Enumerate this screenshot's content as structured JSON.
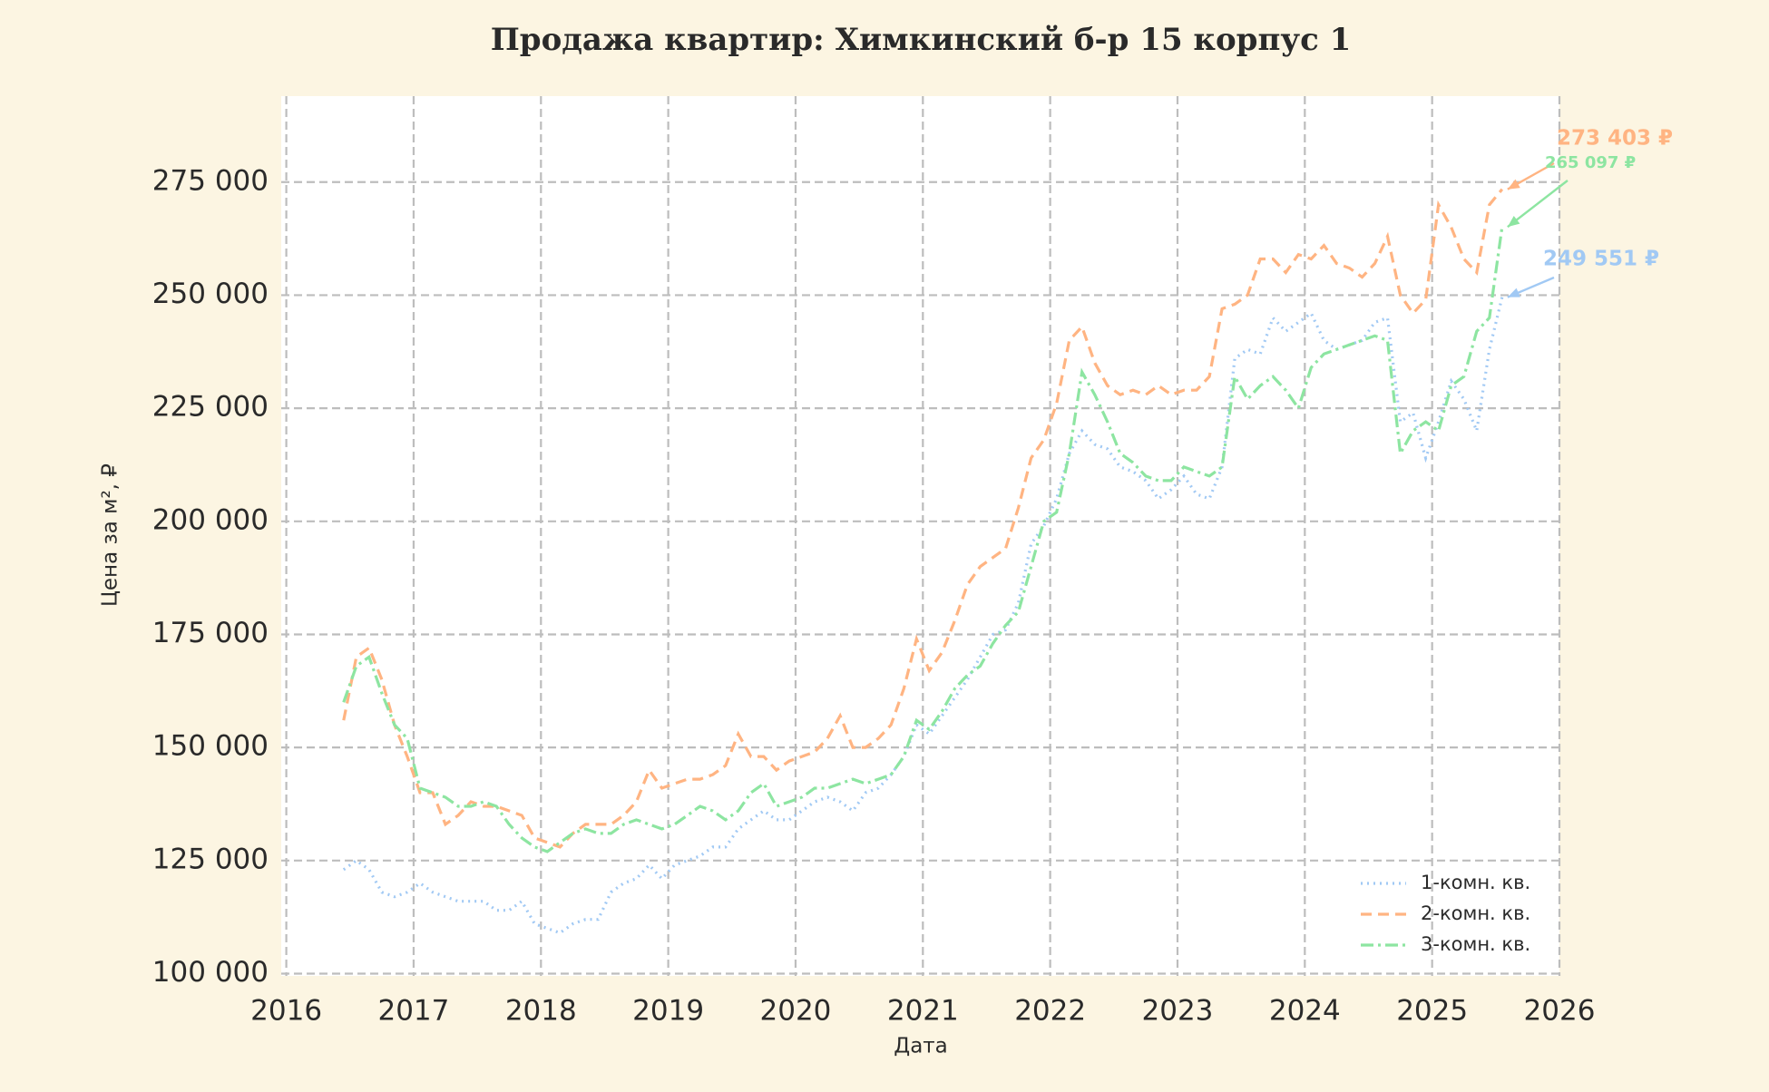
{
  "chart_data": {
    "type": "line",
    "title": "Продажа квартир: Химкинский б-р 15 корпус 1",
    "xlabel": "Дата",
    "ylabel": "Цена за м², ₽",
    "x": [
      2016.45,
      2016.55,
      2016.65,
      2016.75,
      2016.85,
      2016.95,
      2017.05,
      2017.15,
      2017.25,
      2017.35,
      2017.45,
      2017.55,
      2017.65,
      2017.75,
      2017.85,
      2017.95,
      2018.05,
      2018.15,
      2018.25,
      2018.35,
      2018.45,
      2018.55,
      2018.65,
      2018.75,
      2018.85,
      2018.95,
      2019.05,
      2019.15,
      2019.25,
      2019.35,
      2019.45,
      2019.55,
      2019.65,
      2019.75,
      2019.85,
      2019.95,
      2020.05,
      2020.15,
      2020.25,
      2020.35,
      2020.45,
      2020.55,
      2020.65,
      2020.75,
      2020.85,
      2020.95,
      2021.05,
      2021.15,
      2021.25,
      2021.35,
      2021.45,
      2021.55,
      2021.65,
      2021.75,
      2021.85,
      2021.95,
      2022.05,
      2022.15,
      2022.25,
      2022.35,
      2022.45,
      2022.55,
      2022.65,
      2022.75,
      2022.85,
      2022.95,
      2023.05,
      2023.15,
      2023.25,
      2023.35,
      2023.45,
      2023.55,
      2023.65,
      2023.75,
      2023.85,
      2023.95,
      2024.05,
      2024.15,
      2024.25,
      2024.35,
      2024.45,
      2024.55,
      2024.65,
      2024.75,
      2024.85,
      2024.95,
      2025.05,
      2025.15,
      2025.25,
      2025.35,
      2025.45,
      2025.55
    ],
    "series": [
      {
        "name": "1-комн. кв.",
        "color": "#a1c9f4",
        "dash": "dotted",
        "last_label": "249 551 ₽",
        "values": [
          123000,
          125000,
          123000,
          118000,
          117000,
          118000,
          120000,
          118000,
          117000,
          116000,
          116000,
          116000,
          114000,
          114000,
          116000,
          111000,
          110000,
          109000,
          111000,
          112000,
          112000,
          118000,
          120000,
          121000,
          124000,
          121000,
          124000,
          125000,
          126000,
          128000,
          128000,
          132000,
          134000,
          136000,
          134000,
          134000,
          136000,
          138000,
          139000,
          138000,
          136000,
          140000,
          141000,
          144000,
          148000,
          155000,
          153000,
          157000,
          161000,
          165000,
          170000,
          175000,
          176000,
          182000,
          195000,
          199000,
          205000,
          215000,
          220000,
          217000,
          216000,
          212000,
          211000,
          209000,
          205000,
          207000,
          210000,
          206000,
          205000,
          212000,
          236000,
          238000,
          237000,
          245000,
          242000,
          244000,
          246000,
          240000,
          238000,
          239000,
          240000,
          244000,
          245000,
          222000,
          224000,
          214000,
          222000,
          231000,
          227000,
          220000,
          238000,
          249551
        ]
      },
      {
        "name": "2-комн. кв.",
        "color": "#ffb482",
        "dash": "dashed",
        "last_label": "273 403 ₽",
        "values": [
          156000,
          170000,
          172000,
          165000,
          155000,
          148000,
          140000,
          140000,
          133000,
          135000,
          138000,
          137000,
          137000,
          136000,
          135000,
          130000,
          129000,
          128000,
          131000,
          133000,
          133000,
          133000,
          135000,
          138000,
          145000,
          141000,
          142000,
          143000,
          143000,
          144000,
          146000,
          153000,
          148000,
          148000,
          145000,
          147000,
          148000,
          149000,
          152000,
          157000,
          150000,
          150000,
          152000,
          155000,
          163000,
          174000,
          167000,
          171000,
          178000,
          186000,
          190000,
          192000,
          194000,
          203000,
          214000,
          218000,
          226000,
          240000,
          243000,
          235000,
          230000,
          228000,
          229000,
          228000,
          230000,
          228000,
          229000,
          229000,
          232000,
          247000,
          248000,
          250000,
          258000,
          258000,
          255000,
          259000,
          258000,
          261000,
          257000,
          256000,
          254000,
          257000,
          263000,
          250000,
          246000,
          249000,
          270000,
          265000,
          258000,
          255000,
          270000,
          273403
        ]
      },
      {
        "name": "3-комн. кв.",
        "color": "#8de5a1",
        "dash": "dashdot",
        "last_label": "265 097 ₽",
        "values": [
          160000,
          168000,
          170000,
          162000,
          155000,
          152000,
          141000,
          140000,
          139000,
          137000,
          137000,
          138000,
          137000,
          133000,
          130000,
          128000,
          127000,
          129000,
          131000,
          132000,
          131000,
          131000,
          133000,
          134000,
          133000,
          132000,
          133000,
          135000,
          137000,
          136000,
          134000,
          136000,
          140000,
          142000,
          137000,
          138000,
          139000,
          141000,
          141000,
          142000,
          143000,
          142000,
          143000,
          144000,
          148000,
          156000,
          154000,
          158000,
          163000,
          166000,
          168000,
          173000,
          177000,
          180000,
          190000,
          200000,
          202000,
          215000,
          233000,
          228000,
          222000,
          215000,
          213000,
          210000,
          209000,
          209000,
          212000,
          211000,
          210000,
          212000,
          232000,
          227000,
          230000,
          232000,
          229000,
          225000,
          234000,
          237000,
          238000,
          239000,
          240000,
          241000,
          240000,
          215000,
          220000,
          222000,
          220000,
          230000,
          232000,
          242000,
          245000,
          265097
        ]
      }
    ],
    "xlim": [
      2015.96,
      2026.0
    ],
    "xticks": [
      2016,
      2017,
      2018,
      2019,
      2020,
      2021,
      2022,
      2023,
      2024,
      2025,
      2026
    ],
    "ylim": [
      99500,
      294000
    ],
    "yticks": [
      {
        "value": 100000,
        "label": "100 000"
      },
      {
        "value": 125000,
        "label": "125 000"
      },
      {
        "value": 150000,
        "label": "150 000"
      },
      {
        "value": 175000,
        "label": "175 000"
      },
      {
        "value": 200000,
        "label": "200 000"
      },
      {
        "value": 225000,
        "label": "225 000"
      },
      {
        "value": 250000,
        "label": "250 000"
      },
      {
        "value": 275000,
        "label": "275 000"
      }
    ],
    "grid": true,
    "legend": "lower right"
  }
}
